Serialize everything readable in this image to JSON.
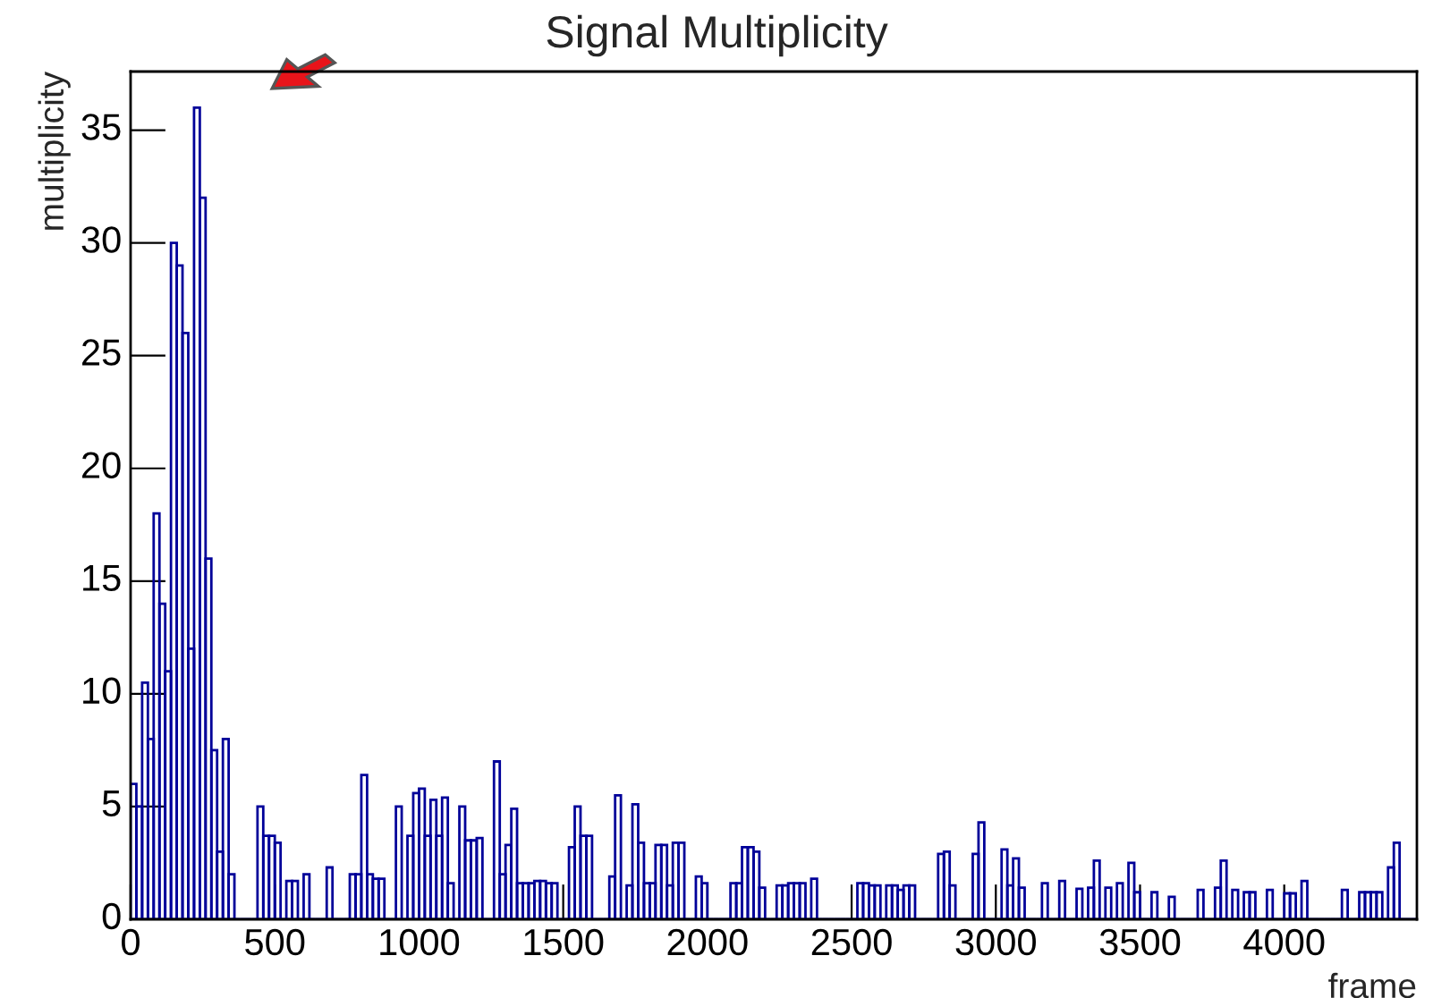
{
  "chart_data": {
    "type": "histogram",
    "title": "Signal Multiplicity",
    "xlabel": "frame",
    "ylabel": "multiplicity",
    "color": "#000099",
    "bins": [
      0,
      20,
      40,
      60,
      80,
      100,
      120,
      140,
      160,
      180,
      200,
      220,
      240,
      260,
      280,
      300,
      320,
      340,
      360,
      380,
      400,
      420,
      440,
      460,
      480,
      500,
      520,
      540,
      560,
      580,
      600,
      620,
      640,
      660,
      680,
      700,
      720,
      740,
      760,
      780,
      800,
      820,
      840,
      860,
      880,
      900,
      920,
      940,
      960,
      980,
      1000,
      1020,
      1040,
      1060,
      1080,
      1100,
      1120,
      1140,
      1160,
      1180,
      1200,
      1220,
      1240,
      1260,
      1280,
      1300,
      1320,
      1340,
      1360,
      1380,
      1400,
      1420,
      1440,
      1460,
      1480,
      1500,
      1520,
      1540,
      1560,
      1580,
      1600,
      1620,
      1640,
      1660,
      1680,
      1700,
      1720,
      1740,
      1760,
      1780,
      1800,
      1820,
      1840,
      1860,
      1880,
      1900,
      1920,
      1940,
      1960,
      1980,
      2000,
      2020,
      2040,
      2060,
      2080,
      2100,
      2120,
      2140,
      2160,
      2180,
      2200,
      2220,
      2240,
      2260,
      2280,
      2300,
      2320,
      2340,
      2360,
      2380,
      2400,
      2420,
      2440,
      2460,
      2480,
      2500,
      2520,
      2540,
      2560,
      2580,
      2600,
      2620,
      2640,
      2660,
      2680,
      2700,
      2720,
      2740,
      2760,
      2780,
      2800,
      2820,
      2840,
      2860,
      2880,
      2900,
      2920,
      2940,
      2960,
      2980,
      3000,
      3020,
      3040,
      3060,
      3080,
      3100,
      3120,
      3140,
      3160,
      3180,
      3200,
      3220,
      3240,
      3260,
      3280,
      3300,
      3320,
      3340,
      3360,
      3380,
      3400,
      3420,
      3440,
      3460,
      3480,
      3500,
      3520,
      3540,
      3560,
      3580,
      3600,
      3620,
      3640,
      3660,
      3680,
      3700,
      3720,
      3740,
      3760,
      3780,
      3800,
      3820,
      3840,
      3860,
      3880,
      3900,
      3920,
      3940,
      3960,
      3980,
      4000,
      4020,
      4040,
      4060,
      4080,
      4100,
      4120,
      4140,
      4160,
      4180,
      4200,
      4220,
      4240,
      4260,
      4280,
      4300,
      4320,
      4340,
      4360,
      4380,
      4400,
      4420,
      4440,
      4460
    ],
    "values": [
      6,
      5,
      10.5,
      8,
      18,
      14,
      11,
      30,
      29,
      26,
      12,
      36,
      32,
      16,
      7.5,
      3,
      8,
      2,
      0,
      0,
      0,
      0,
      5,
      3.7,
      3.7,
      3.4,
      0,
      1.7,
      1.7,
      0,
      2,
      0,
      0,
      0,
      2.3,
      0,
      0,
      0,
      2,
      2,
      6.4,
      2,
      1.8,
      1.8,
      0,
      0,
      5,
      0,
      3.7,
      5.6,
      5.8,
      3.7,
      5.3,
      3.7,
      5.4,
      1.6,
      0,
      5,
      3.5,
      3.5,
      3.6,
      0,
      0,
      7,
      2,
      3.3,
      4.9,
      1.6,
      1.6,
      1.6,
      1.7,
      1.7,
      1.6,
      1.6,
      0,
      0,
      3.2,
      5,
      3.7,
      3.7,
      0,
      0,
      0,
      1.9,
      5.5,
      0,
      1.5,
      5.1,
      3.4,
      1.6,
      1.6,
      3.3,
      3.3,
      1.5,
      3.4,
      3.4,
      0,
      0,
      1.9,
      1.6,
      0,
      0,
      0,
      0,
      1.6,
      1.6,
      3.2,
      3.2,
      3,
      1.4,
      0,
      0,
      1.5,
      1.5,
      1.6,
      1.6,
      1.6,
      0,
      1.8,
      0,
      0,
      0,
      0,
      0,
      0,
      0,
      1.6,
      1.6,
      1.5,
      1.5,
      0,
      1.5,
      1.5,
      1.3,
      1.5,
      1.5,
      0,
      0,
      0,
      0,
      2.9,
      3,
      1.5,
      0,
      0,
      0,
      2.9,
      4.3,
      0,
      0,
      0,
      3.1,
      1.5,
      2.7,
      1.4,
      0,
      0,
      0,
      1.6,
      0,
      0,
      1.7,
      0,
      0,
      1.35,
      0,
      1.4,
      2.6,
      0,
      1.4,
      0,
      1.6,
      0,
      2.5,
      1.2,
      0,
      0,
      1.2,
      0,
      0,
      1,
      0,
      0,
      0,
      0,
      1.3,
      0,
      0,
      1.4,
      2.6,
      0,
      1.3,
      0,
      1.2,
      1.2,
      0,
      0,
      1.3,
      0,
      0,
      1.15,
      1.15,
      0,
      1.7,
      0,
      0,
      0,
      0,
      0,
      0,
      1.3,
      0,
      0,
      1.2,
      1.2,
      1.2,
      1.2,
      0,
      2.3,
      3.4,
      0,
      0,
      0
    ],
    "xlim": [
      0,
      4460
    ],
    "ylim": [
      0,
      37.6
    ],
    "xticks": [
      0,
      500,
      1000,
      1500,
      2000,
      2500,
      3000,
      3500,
      4000
    ],
    "yticks": [
      0,
      5,
      10,
      15,
      20,
      25,
      30,
      35
    ]
  }
}
